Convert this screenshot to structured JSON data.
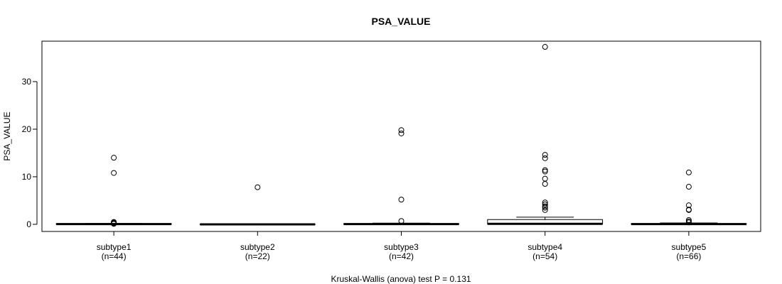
{
  "chart_data": {
    "type": "boxplot",
    "title": "PSA_VALUE",
    "ylabel": "PSA_VALUE",
    "xlabel": "",
    "footer": "Kruskal-Wallis (anova) test P = 0.131",
    "ylim": [
      -1.5,
      38.5
    ],
    "yticks": [
      0,
      10,
      20,
      30
    ],
    "categories": [
      "subtype1",
      "subtype2",
      "subtype3",
      "subtype4",
      "subtype5"
    ],
    "counts": [
      "(n=44)",
      "(n=22)",
      "(n=42)",
      "(n=54)",
      "(n=66)"
    ],
    "boxes": [
      {
        "q1": 0.0,
        "median": 0.05,
        "q3": 0.15,
        "whisker_low": 0.0,
        "whisker_high": 0.2,
        "outliers": [
          14.0,
          10.8,
          0.5,
          0.4,
          0.3,
          0.2,
          0.15,
          0.1
        ]
      },
      {
        "q1": 0.0,
        "median": 0.0,
        "q3": 0.02,
        "whisker_low": 0.0,
        "whisker_high": 0.05,
        "outliers": [
          7.8
        ]
      },
      {
        "q1": 0.0,
        "median": 0.05,
        "q3": 0.15,
        "whisker_low": 0.0,
        "whisker_high": 0.25,
        "outliers": [
          19.8,
          19.1,
          5.2,
          0.7
        ]
      },
      {
        "q1": 0.05,
        "median": 0.1,
        "q3": 1.0,
        "whisker_low": 0.0,
        "whisker_high": 1.5,
        "outliers": [
          37.3,
          14.6,
          13.9,
          11.4,
          11.1,
          9.6,
          8.5,
          4.6,
          4.2,
          3.8,
          3.5,
          3.0
        ]
      },
      {
        "q1": 0.0,
        "median": 0.05,
        "q3": 0.15,
        "whisker_low": 0.0,
        "whisker_high": 0.3,
        "outliers": [
          10.9,
          7.9,
          4.0,
          3.1,
          3.0,
          0.9,
          0.6,
          0.4
        ]
      }
    ]
  }
}
